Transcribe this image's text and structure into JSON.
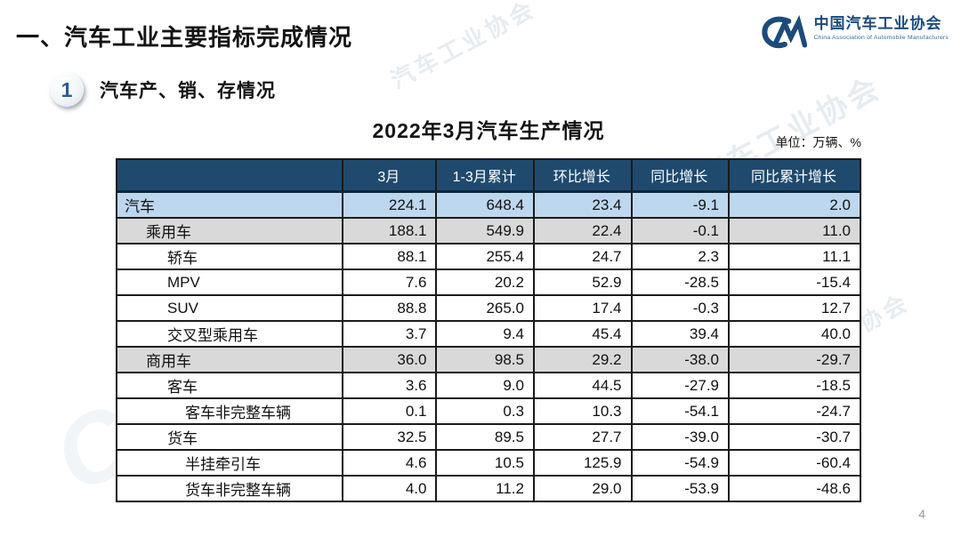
{
  "page": {
    "heading": "一、汽车工业主要指标完成情况",
    "page_number": "4"
  },
  "logo": {
    "name_cn": "中国汽车工业协会",
    "name_en": "China Association of Automobile Manufacturers",
    "brand_color": "#1b4b7c"
  },
  "section": {
    "number": "1",
    "title": "汽车产、销、存情况"
  },
  "table": {
    "title": "2022年3月汽车生产情况",
    "unit_note": "单位：万辆、%",
    "columns": [
      "",
      "3月",
      "1-3月累计",
      "环比增长",
      "同比增长",
      "同比累计增长"
    ],
    "header_bg": "#1f4a6e",
    "highlight_blue": "#bdd7ee",
    "highlight_gray": "#d9d9d9",
    "rows": [
      {
        "label": "汽车",
        "indent": 0,
        "bg": "blue",
        "values": [
          "224.1",
          "648.4",
          "23.4",
          "-9.1",
          "2.0"
        ]
      },
      {
        "label": "乘用车",
        "indent": 1,
        "bg": "gray",
        "values": [
          "188.1",
          "549.9",
          "22.4",
          "-0.1",
          "11.0"
        ]
      },
      {
        "label": "轿车",
        "indent": 2,
        "bg": "white",
        "values": [
          "88.1",
          "255.4",
          "24.7",
          "2.3",
          "11.1"
        ]
      },
      {
        "label": "MPV",
        "indent": 2,
        "bg": "white",
        "values": [
          "7.6",
          "20.2",
          "52.9",
          "-28.5",
          "-15.4"
        ]
      },
      {
        "label": "SUV",
        "indent": 2,
        "bg": "white",
        "values": [
          "88.8",
          "265.0",
          "17.4",
          "-0.3",
          "12.7"
        ]
      },
      {
        "label": "交叉型乘用车",
        "indent": 2,
        "bg": "white",
        "values": [
          "3.7",
          "9.4",
          "45.4",
          "39.4",
          "40.0"
        ]
      },
      {
        "label": "商用车",
        "indent": 1,
        "bg": "gray",
        "values": [
          "36.0",
          "98.5",
          "29.2",
          "-38.0",
          "-29.7"
        ]
      },
      {
        "label": "客车",
        "indent": 2,
        "bg": "white",
        "values": [
          "3.6",
          "9.0",
          "44.5",
          "-27.9",
          "-18.5"
        ]
      },
      {
        "label": "客车非完整车辆",
        "indent": 3,
        "bg": "white",
        "values": [
          "0.1",
          "0.3",
          "10.3",
          "-54.1",
          "-24.7"
        ]
      },
      {
        "label": "货车",
        "indent": 2,
        "bg": "white",
        "values": [
          "32.5",
          "89.5",
          "27.7",
          "-39.0",
          "-30.7"
        ]
      },
      {
        "label": "半挂牵引车",
        "indent": 3,
        "bg": "white",
        "values": [
          "4.6",
          "10.5",
          "125.9",
          "-54.9",
          "-60.4"
        ]
      },
      {
        "label": "货车非完整车辆",
        "indent": 3,
        "bg": "white",
        "values": [
          "4.0",
          "11.2",
          "29.0",
          "-53.9",
          "-48.6"
        ]
      }
    ]
  },
  "watermark": {
    "text_cn": "中国汽车工业协会",
    "text_short": "汽车工业协会",
    "mark": "CM"
  }
}
